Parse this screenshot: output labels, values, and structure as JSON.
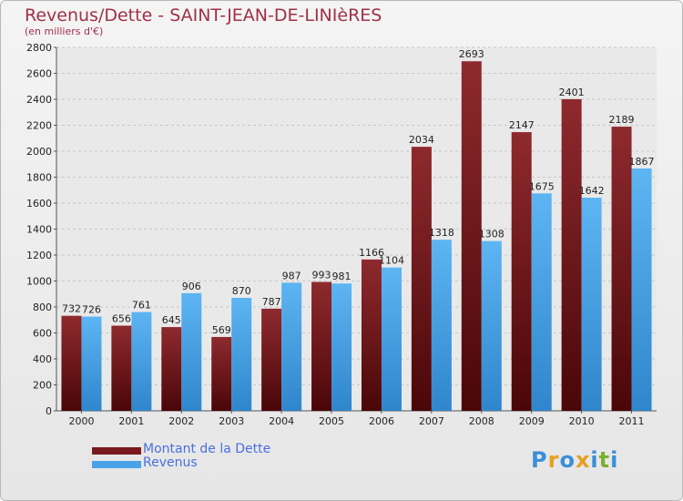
{
  "chart_data": {
    "type": "bar",
    "title": "Revenus/Dette - SAINT-JEAN-DE-LINIèRES",
    "subtitle": "(en milliers d'€)",
    "categories": [
      "2000",
      "2001",
      "2002",
      "2003",
      "2004",
      "2005",
      "2006",
      "2007",
      "2008",
      "2009",
      "2010",
      "2011"
    ],
    "series": [
      {
        "name": "Montant de la Dette",
        "color": "#7a1a1e",
        "values": [
          732,
          656,
          645,
          569,
          787,
          993,
          1166,
          2034,
          2693,
          2147,
          2401,
          2189
        ]
      },
      {
        "name": "Revenus",
        "color": "#4aa3e8",
        "values": [
          726,
          761,
          906,
          870,
          987,
          981,
          1104,
          1318,
          1308,
          1675,
          1642,
          1867
        ]
      }
    ],
    "ylim": [
      0,
      2800
    ],
    "yticks": [
      0,
      200,
      400,
      600,
      800,
      1000,
      1200,
      1400,
      1600,
      1800,
      2000,
      2200,
      2400,
      2600,
      2800
    ],
    "grid": true,
    "legend": "bottom-left"
  },
  "logo": {
    "letters": [
      "P",
      "r",
      "o",
      "x",
      "i",
      "t",
      "i"
    ],
    "colors": [
      "#3a8fd8",
      "#e8a020",
      "#3a8fd8",
      "#e8a020",
      "#3a8fd8",
      "#7ab030",
      "#3a8fd8"
    ]
  }
}
